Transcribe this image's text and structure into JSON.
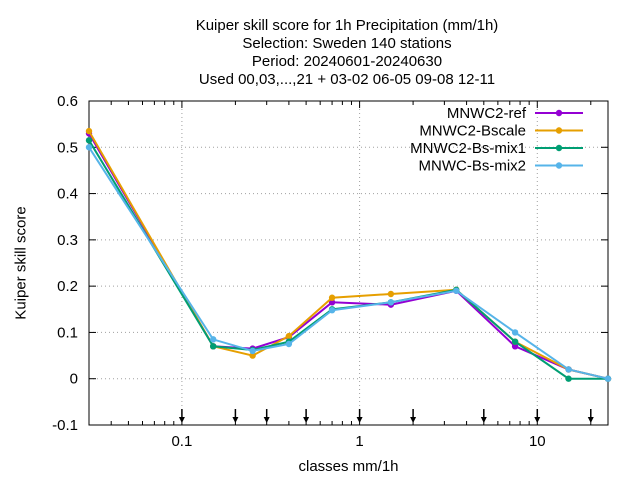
{
  "chart_data": {
    "type": "line",
    "title_lines": [
      "Kuiper skill score  for 1h Precipitation (mm/1h)",
      "Selection: Sweden    140 stations",
      "Period: 20240601-20240630",
      "Used 00,03,...,21 + 03-02 06-05 09-08 12-11"
    ],
    "xlabel": "classes mm/1h",
    "ylabel": "Kuiper skill score",
    "xscale": "log",
    "xlim": [
      0.03,
      25
    ],
    "ylim": [
      -0.1,
      0.6
    ],
    "xticks": [
      0.1,
      1,
      10
    ],
    "xtick_labels": [
      "0.1",
      "1",
      "10"
    ],
    "yticks": [
      -0.1,
      0,
      0.1,
      0.2,
      0.3,
      0.4,
      0.5,
      0.6
    ],
    "ytick_labels": [
      "-0.1",
      "0",
      "0.1",
      "0.2",
      "0.3",
      "0.4",
      "0.5",
      "0.6"
    ],
    "grid": true,
    "legend_position": "top-right",
    "threshold_arrows_x": [
      0.1,
      0.2,
      0.3,
      0.5,
      1,
      2,
      5,
      10,
      20
    ],
    "series": [
      {
        "name": "MNWC2-ref",
        "color": "#9400d3",
        "x": [
          0.03,
          0.15,
          0.25,
          0.4,
          0.7,
          1.5,
          3.5,
          7.5,
          15,
          25
        ],
        "y": [
          0.53,
          0.07,
          0.065,
          0.09,
          0.165,
          0.16,
          0.19,
          0.07,
          0.02,
          0
        ]
      },
      {
        "name": "MNWC2-Bscale",
        "color": "#e69f00",
        "x": [
          0.03,
          0.15,
          0.25,
          0.4,
          0.7,
          1.5,
          3.5,
          7.5,
          15,
          25
        ],
        "y": [
          0.535,
          0.07,
          0.05,
          0.092,
          0.175,
          0.183,
          0.192,
          0.08,
          0.02,
          0
        ]
      },
      {
        "name": "MNWC2-Bs-mix1",
        "color": "#009e73",
        "x": [
          0.03,
          0.15,
          0.25,
          0.4,
          0.7,
          1.5,
          3.5,
          7.5,
          15,
          25
        ],
        "y": [
          0.515,
          0.07,
          0.062,
          0.08,
          0.15,
          0.165,
          0.192,
          0.08,
          0,
          0
        ]
      },
      {
        "name": "MNWC-Bs-mix2",
        "color": "#56b4e9",
        "x": [
          0.03,
          0.15,
          0.25,
          0.4,
          0.7,
          1.5,
          3.5,
          7.5,
          15,
          25
        ],
        "y": [
          0.5,
          0.085,
          0.06,
          0.075,
          0.148,
          0.165,
          0.19,
          0.1,
          0.02,
          0
        ]
      }
    ]
  }
}
